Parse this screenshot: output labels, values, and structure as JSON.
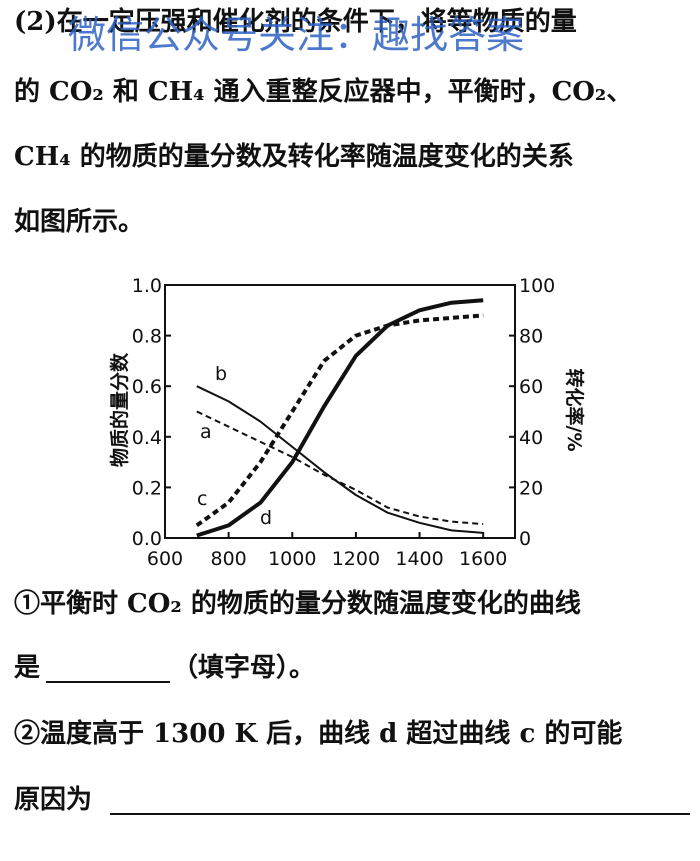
{
  "watermark": "微信公众号关注：趣找答案",
  "paragraph": {
    "lines": [
      "(2)在一定压强和催化剂的条件下，将等物质的量",
      "的 CO₂ 和 CH₄ 通入重整反应器中，平衡时，CO₂、",
      "CH₄ 的物质的量分数及转化率随温度变化的关系",
      "如图所示。"
    ]
  },
  "chart_data": {
    "type": "line",
    "y_label": "物质的量分数",
    "y2_label": "转化率/%",
    "xlim": [
      600,
      1700
    ],
    "xticks": [
      600,
      800,
      1000,
      1200,
      1400,
      1600
    ],
    "ylim": [
      0,
      1
    ],
    "yticks": [
      {
        "value": 0,
        "label": "0.0"
      },
      0.2,
      0.4,
      0.6,
      0.8,
      {
        "value": 1,
        "label": "1.0"
      }
    ],
    "y2lim": [
      0,
      100
    ],
    "y2ticks": [
      0,
      20,
      40,
      60,
      80,
      100
    ],
    "x": [
      700,
      800,
      900,
      1000,
      1100,
      1200,
      1300,
      1400,
      1500,
      1600
    ],
    "series": [
      {
        "name": "a",
        "color": "#111",
        "style": "dashed",
        "values": [
          0.5,
          0.44,
          0.38,
          0.32,
          0.25,
          0.19,
          0.12,
          0.085,
          0.065,
          0.055
        ]
      },
      {
        "name": "b",
        "color": "#111",
        "style": "solid",
        "values": [
          0.6,
          0.54,
          0.46,
          0.36,
          0.26,
          0.17,
          0.1,
          0.06,
          0.03,
          0.02
        ]
      },
      {
        "name": "c",
        "color": "#111",
        "style": "dashed",
        "axis": "y2",
        "values": [
          5,
          14,
          30,
          50,
          70,
          80,
          84,
          86,
          87,
          88
        ]
      },
      {
        "name": "d",
        "color": "#111",
        "style": "solid",
        "axis": "y2",
        "values": [
          1,
          5,
          14,
          30,
          52,
          72,
          84,
          90,
          93,
          94
        ]
      }
    ]
  },
  "questions": {
    "q1": "①平衡时 CO₂ 的物质的量分数随温度变化的曲线",
    "q1_before": "是",
    "q1_after": "（填字母）。",
    "q2": "②温度高于 1300 K 后，曲线 d 超过曲线 c 的可能",
    "q2_before": "原因为"
  }
}
